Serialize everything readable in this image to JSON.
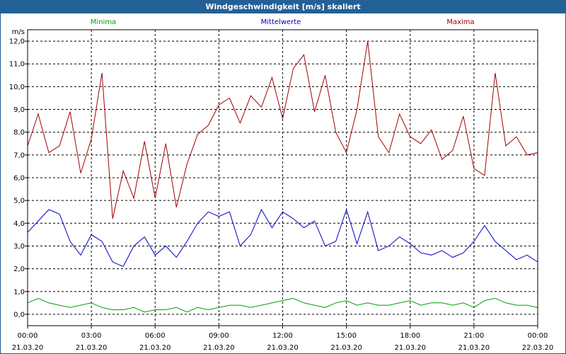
{
  "window": {
    "title": "Windgeschwindigkeit [m/s] skaliert"
  },
  "chart_data": {
    "type": "line",
    "title": "Windgeschwindigkeit [m/s] skaliert",
    "ylabel": "m/s",
    "xlabel": "",
    "ylim": [
      -0.5,
      12.5
    ],
    "xlim": [
      0,
      24
    ],
    "yticks": [
      0.0,
      1.0,
      2.0,
      3.0,
      4.0,
      5.0,
      6.0,
      7.0,
      8.0,
      9.0,
      10.0,
      11.0,
      12.0
    ],
    "ytick_labels": [
      "0,0",
      "1,0",
      "2,0",
      "3,0",
      "4,0",
      "5,0",
      "6,0",
      "7,0",
      "8,0",
      "9,0",
      "10,0",
      "11,0",
      "12,0"
    ],
    "xticks": [
      0,
      3,
      6,
      9,
      12,
      15,
      18,
      21,
      24
    ],
    "xtick_labels": [
      {
        "time": "00:00",
        "date": "21.03.20"
      },
      {
        "time": "03:00",
        "date": "21.03.20"
      },
      {
        "time": "06:00",
        "date": "21.03.20"
      },
      {
        "time": "09:00",
        "date": "21.03.20"
      },
      {
        "time": "12:00",
        "date": "21.03.20"
      },
      {
        "time": "15:00",
        "date": "21.03.20"
      },
      {
        "time": "18:00",
        "date": "21.03.20"
      },
      {
        "time": "21:00",
        "date": "21.03.20"
      },
      {
        "time": "00:00",
        "date": "22.03.20"
      }
    ],
    "grid": true,
    "legend_position": "top",
    "x": [
      0,
      0.5,
      1,
      1.5,
      2,
      2.5,
      3,
      3.5,
      4,
      4.5,
      5,
      5.5,
      6,
      6.5,
      7,
      7.5,
      8,
      8.5,
      9,
      9.5,
      10,
      10.5,
      11,
      11.5,
      12,
      12.5,
      13,
      13.5,
      14,
      14.5,
      15,
      15.5,
      16,
      16.5,
      17,
      17.5,
      18,
      18.5,
      19,
      19.5,
      20,
      20.5,
      21,
      21.5,
      22,
      22.5,
      23,
      23.5,
      24
    ],
    "series": [
      {
        "name": "Minima",
        "color": "#00a000",
        "values": [
          0.5,
          0.7,
          0.5,
          0.4,
          0.3,
          0.4,
          0.5,
          0.3,
          0.2,
          0.2,
          0.3,
          0.1,
          0.2,
          0.2,
          0.3,
          0.1,
          0.3,
          0.2,
          0.3,
          0.4,
          0.4,
          0.3,
          0.4,
          0.5,
          0.6,
          0.7,
          0.5,
          0.4,
          0.3,
          0.5,
          0.6,
          0.4,
          0.5,
          0.4,
          0.4,
          0.5,
          0.6,
          0.4,
          0.5,
          0.5,
          0.4,
          0.5,
          0.3,
          0.6,
          0.7,
          0.5,
          0.4,
          0.4,
          0.3
        ]
      },
      {
        "name": "Mittelwerte",
        "color": "#0000c0",
        "values": [
          3.6,
          4.1,
          4.6,
          4.4,
          3.2,
          2.6,
          3.5,
          3.2,
          2.3,
          2.1,
          3.0,
          3.4,
          2.6,
          3.0,
          2.5,
          3.2,
          4.0,
          4.5,
          4.3,
          4.5,
          3.0,
          3.5,
          4.6,
          3.8,
          4.5,
          4.2,
          3.8,
          4.1,
          3.0,
          3.2,
          4.6,
          3.1,
          4.5,
          2.8,
          3.0,
          3.4,
          3.1,
          2.7,
          2.6,
          2.8,
          2.5,
          2.7,
          3.2,
          3.9,
          3.2,
          2.8,
          2.4,
          2.6,
          2.3
        ]
      },
      {
        "name": "Maxima",
        "color": "#a00000",
        "values": [
          7.4,
          8.8,
          7.1,
          7.4,
          8.9,
          6.2,
          7.7,
          10.6,
          4.2,
          6.3,
          5.1,
          7.6,
          5.1,
          7.5,
          4.7,
          6.6,
          7.9,
          8.3,
          9.2,
          9.5,
          8.4,
          9.6,
          9.1,
          10.4,
          8.6,
          10.8,
          11.4,
          8.9,
          10.5,
          8.0,
          7.1,
          9.0,
          12.0,
          7.8,
          7.1,
          8.8,
          7.8,
          7.5,
          8.1,
          6.8,
          7.2,
          8.7,
          6.4,
          6.1,
          10.6,
          7.4,
          7.8,
          7.0,
          7.1
        ]
      }
    ]
  }
}
